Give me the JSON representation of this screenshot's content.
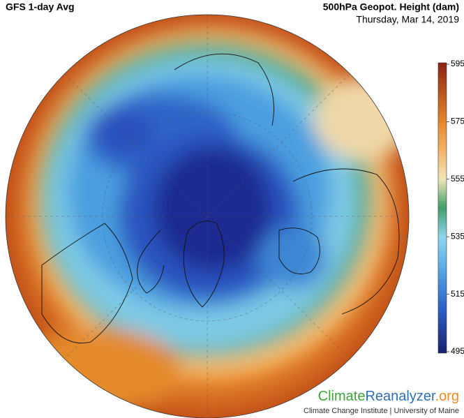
{
  "header": {
    "title": "GFS 1-day Avg",
    "variable": "500hPa Geopot. Height (dam)",
    "date": "Thursday, Mar 14, 2019"
  },
  "colorbar": {
    "ticks": [
      495,
      515,
      535,
      555,
      575,
      595
    ]
  },
  "logo": {
    "parts": [
      "Climate",
      "Reanalyzer",
      ".org"
    ],
    "subtitle": "Climate Change Institute | University of Maine"
  }
}
